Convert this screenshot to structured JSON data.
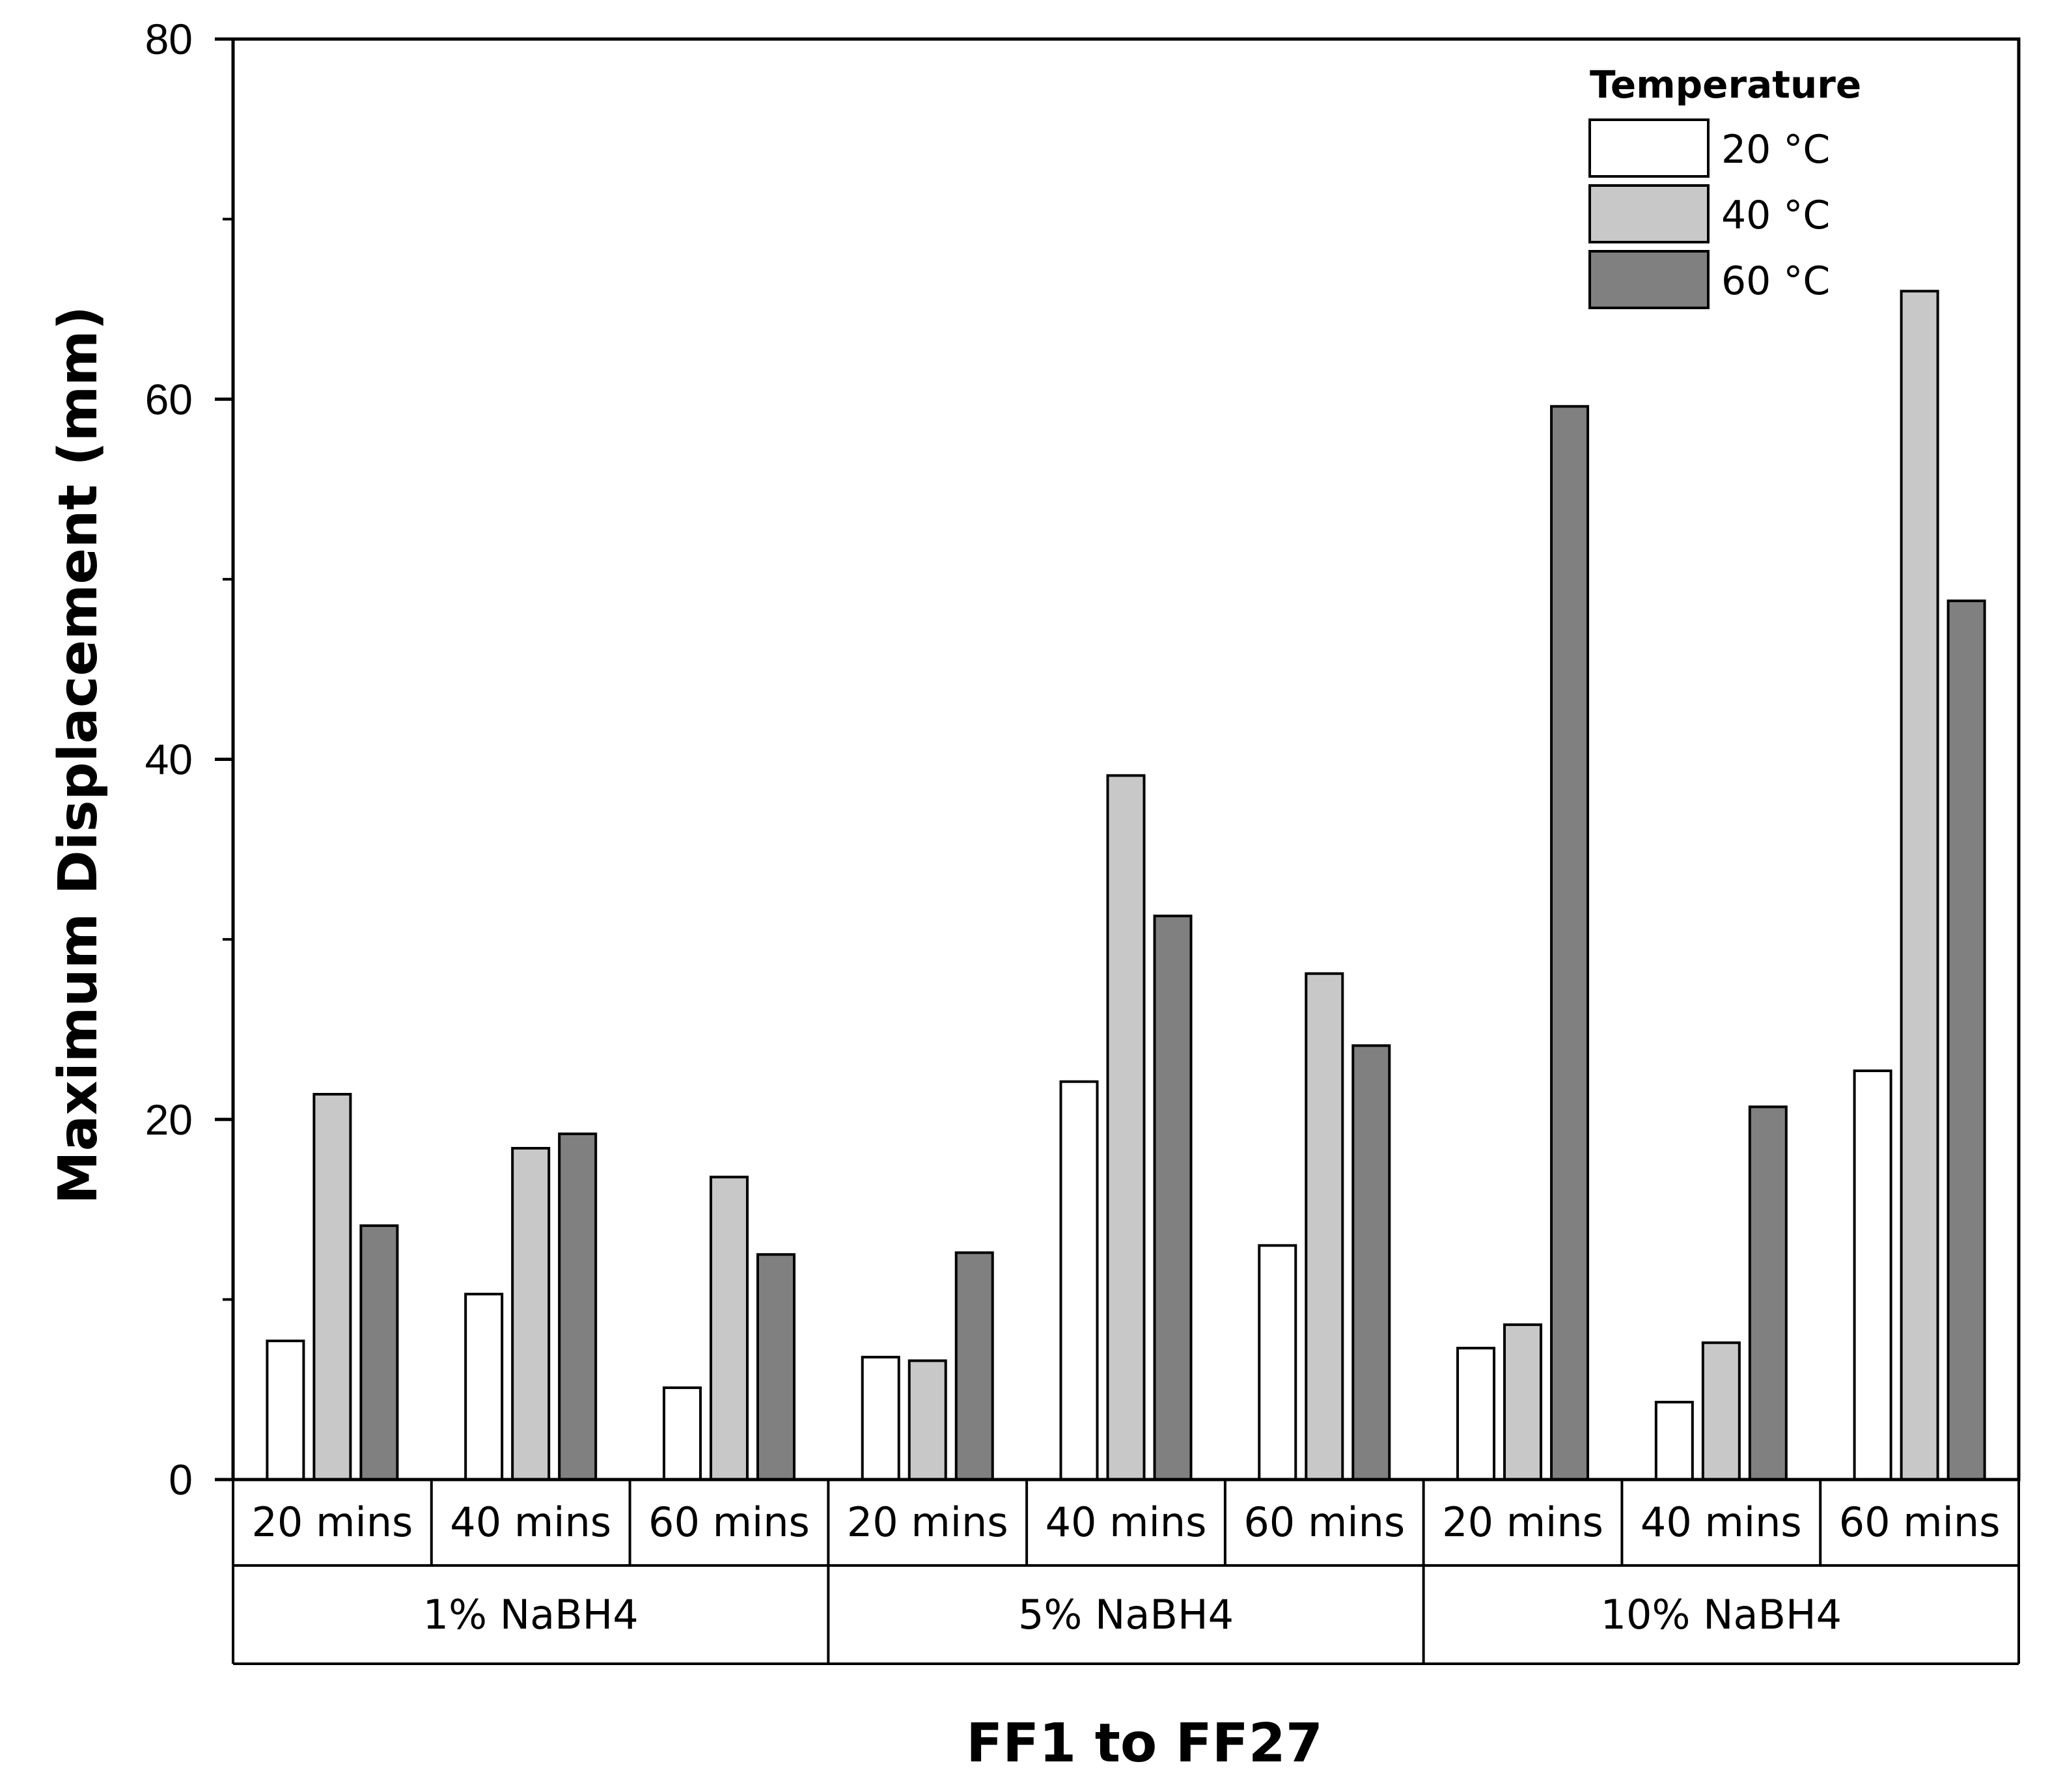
{
  "chart_data": {
    "type": "bar",
    "title": "",
    "xlabel": "FF1 to FF27",
    "ylabel": "Maximum Displacement (mm)",
    "ylim": [
      0,
      80
    ],
    "yticks": [
      "0",
      "20",
      "40",
      "60",
      "80"
    ],
    "groups": [
      "1% NaBH4",
      "5% NaBH4",
      "10% NaBH4"
    ],
    "categories": [
      "20 mins",
      "40 mins",
      "60 mins",
      "20 mins",
      "40 mins",
      "60 mins",
      "20 mins",
      "40 mins",
      "60 mins"
    ],
    "legend_title": "Temperature",
    "legend_position": "top-right",
    "series": [
      {
        "name": "20 °C",
        "color": "#ffffff",
        "values": [
          7.7,
          10.3,
          5.1,
          6.8,
          22.1,
          13.0,
          7.3,
          4.3,
          22.7
        ]
      },
      {
        "name": "40 °C",
        "color": "#c8c8c8",
        "values": [
          21.4,
          18.4,
          16.8,
          6.6,
          39.1,
          28.1,
          8.6,
          7.6,
          66.0
        ]
      },
      {
        "name": "60 °C",
        "color": "#808080",
        "values": [
          14.1,
          19.2,
          12.5,
          12.6,
          31.3,
          24.1,
          59.6,
          20.7,
          48.8
        ]
      }
    ]
  }
}
